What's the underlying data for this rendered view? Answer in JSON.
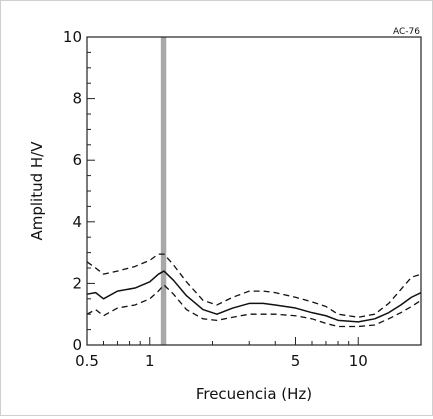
{
  "chart_data": {
    "type": "line",
    "station_label": "AC-76",
    "xlabel": "Frecuencia (Hz)",
    "ylabel": "Amplitud H/V",
    "x_scale": "log",
    "xlim": [
      0.5,
      20
    ],
    "ylim": [
      0,
      10
    ],
    "x_ticks": [
      {
        "value": 0.5,
        "label": "0.5"
      },
      {
        "value": 1,
        "label": "1"
      },
      {
        "value": 5,
        "label": "5"
      },
      {
        "value": 10,
        "label": "10"
      }
    ],
    "y_ticks": [
      {
        "value": 0,
        "label": "0"
      },
      {
        "value": 2,
        "label": "2"
      },
      {
        "value": 4,
        "label": "4"
      },
      {
        "value": 6,
        "label": "6"
      },
      {
        "value": 8,
        "label": "8"
      },
      {
        "value": 10,
        "label": "10"
      }
    ],
    "grid": false,
    "peak_frequency_band": [
      1.13,
      1.2
    ],
    "colors": {
      "mean": "#111111",
      "bounds": "#111111",
      "peak_band": "#a8a8a8"
    },
    "series": [
      {
        "role": "mean",
        "x": [
          0.5,
          0.55,
          0.6,
          0.7,
          0.85,
          1.0,
          1.1,
          1.17,
          1.3,
          1.5,
          1.8,
          2.1,
          2.5,
          3.0,
          3.5,
          4.0,
          5.0,
          6.0,
          7.0,
          8.0,
          10.0,
          12.0,
          14.0,
          16.0,
          18.0,
          20.0
        ],
        "y": [
          1.65,
          1.7,
          1.5,
          1.75,
          1.85,
          2.05,
          2.3,
          2.4,
          2.1,
          1.6,
          1.15,
          1.0,
          1.2,
          1.35,
          1.35,
          1.3,
          1.2,
          1.05,
          0.95,
          0.8,
          0.75,
          0.85,
          1.05,
          1.3,
          1.55,
          1.7
        ]
      },
      {
        "role": "upper",
        "x": [
          0.5,
          0.55,
          0.6,
          0.7,
          0.85,
          1.0,
          1.1,
          1.17,
          1.3,
          1.5,
          1.8,
          2.1,
          2.5,
          3.0,
          3.5,
          4.0,
          5.0,
          6.0,
          7.0,
          8.0,
          10.0,
          12.0,
          14.0,
          16.0,
          18.0,
          20.0
        ],
        "y": [
          2.7,
          2.5,
          2.3,
          2.4,
          2.55,
          2.75,
          2.95,
          2.95,
          2.6,
          2.05,
          1.45,
          1.3,
          1.55,
          1.75,
          1.75,
          1.7,
          1.55,
          1.4,
          1.25,
          1.0,
          0.9,
          1.0,
          1.35,
          1.8,
          2.2,
          2.3
        ]
      },
      {
        "role": "lower",
        "x": [
          0.5,
          0.55,
          0.6,
          0.7,
          0.85,
          1.0,
          1.1,
          1.17,
          1.3,
          1.5,
          1.8,
          2.1,
          2.5,
          3.0,
          3.5,
          4.0,
          5.0,
          6.0,
          7.0,
          8.0,
          10.0,
          12.0,
          14.0,
          16.0,
          18.0,
          20.0
        ],
        "y": [
          1.0,
          1.15,
          0.95,
          1.2,
          1.3,
          1.5,
          1.75,
          1.95,
          1.65,
          1.15,
          0.85,
          0.8,
          0.9,
          1.0,
          1.0,
          1.0,
          0.95,
          0.85,
          0.7,
          0.6,
          0.6,
          0.65,
          0.85,
          1.05,
          1.25,
          1.45
        ]
      }
    ]
  }
}
